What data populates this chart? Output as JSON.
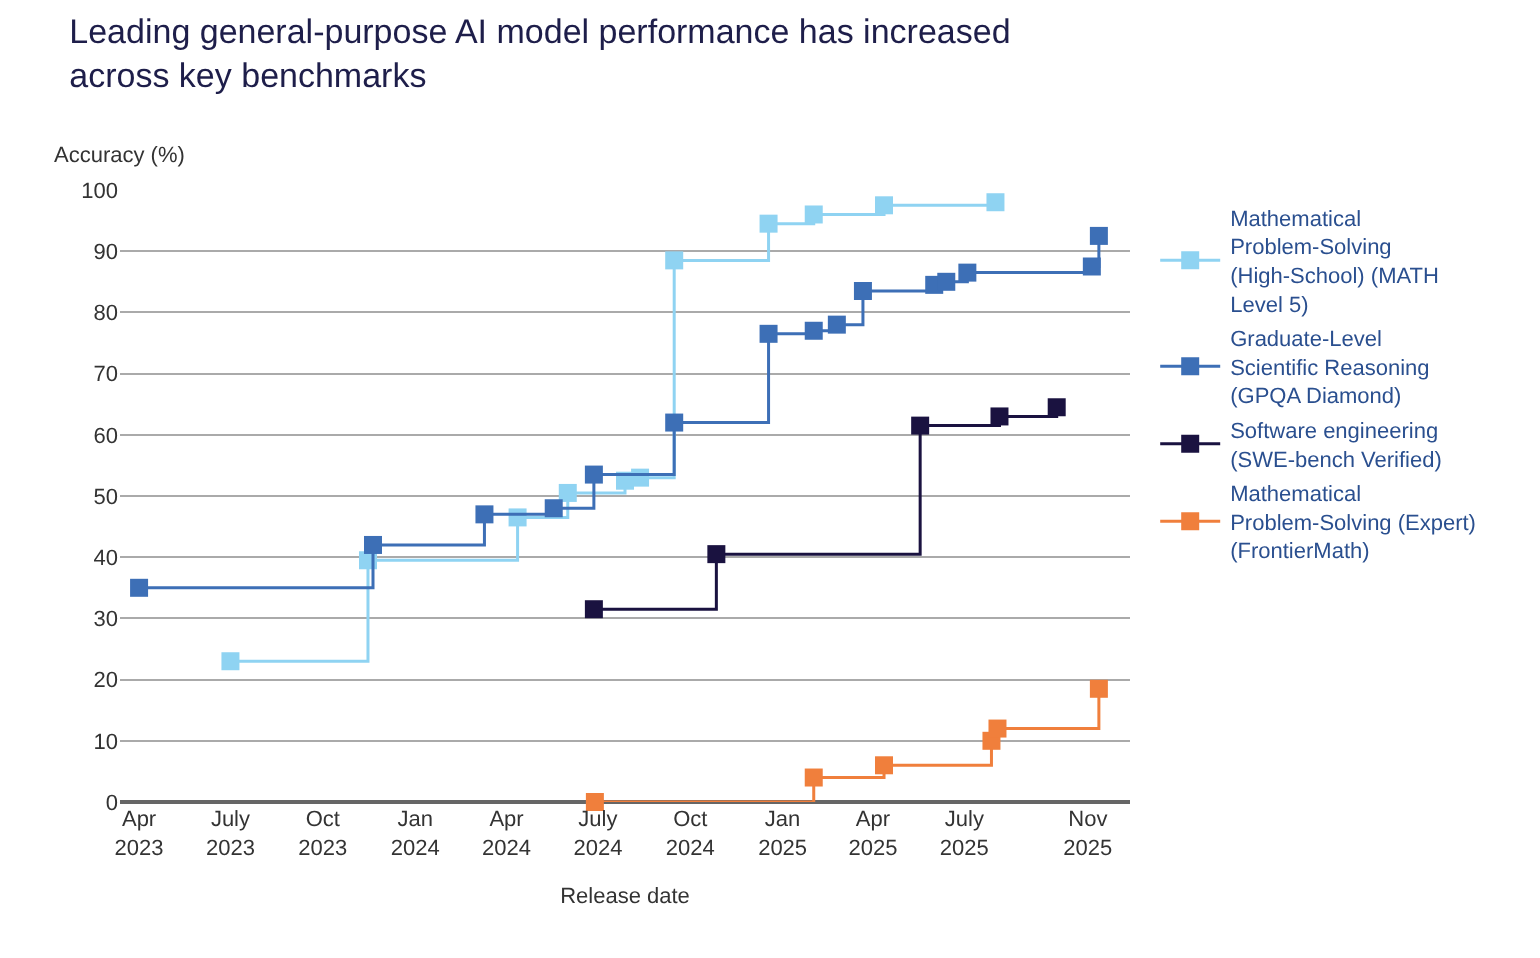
{
  "chart_data": {
    "type": "step",
    "title": "Leading general-purpose AI model performance has increased across key benchmarks",
    "xlabel": "Release date",
    "ylabel": "Accuracy (%)",
    "series": [
      {
        "name": "Mathematical Problem-Solving (High-School) (MATH Level 5)",
        "color": "#8fd3f2",
        "x": [
          "2023-07-01",
          "2023-11-15",
          "2024-04-12",
          "2024-06-01",
          "2024-07-28",
          "2024-08-12",
          "2024-09-15",
          "2024-12-18",
          "2025-02-01",
          "2025-04-12",
          "2025-08-01"
        ],
        "values": [
          23,
          39.5,
          46.5,
          50.5,
          52.5,
          53,
          88.5,
          94.5,
          96,
          97.5,
          98
        ]
      },
      {
        "name": "Graduate-Level Scientific Reasoning (GPQA Diamond)",
        "color": "#3d6fb6",
        "x": [
          "2023-04-01",
          "2023-11-20",
          "2024-03-10",
          "2024-05-18",
          "2024-06-27",
          "2024-09-15",
          "2024-12-18",
          "2025-02-01",
          "2025-02-24",
          "2025-03-22",
          "2025-06-01",
          "2025-06-13",
          "2025-07-04",
          "2025-11-05",
          "2025-11-12"
        ],
        "values": [
          35,
          42,
          47,
          48,
          53.5,
          62,
          76.5,
          77,
          78,
          83.5,
          84.5,
          85,
          86.5,
          87.5,
          92.5
        ]
      },
      {
        "name": "Software engineering (SWE-bench Verified)",
        "color": "#1a1240",
        "x": [
          "2024-06-27",
          "2024-10-27",
          "2025-05-18",
          "2025-08-05",
          "2025-10-01"
        ],
        "values": [
          31.5,
          40.5,
          61.5,
          63,
          64.5
        ]
      },
      {
        "name": "Mathematical Problem-Solving (Expert) (FrontierMath)",
        "color": "#f07f3c",
        "x": [
          "2024-06-28",
          "2025-02-01",
          "2025-04-12",
          "2025-07-28",
          "2025-08-03",
          "2025-11-12"
        ],
        "values": [
          0,
          4,
          6,
          10,
          12,
          18.5
        ]
      }
    ],
    "xlim": [
      "2023-03-13",
      "2025-12-13"
    ],
    "xticks": [
      {
        "value": "2023-04-01",
        "label": "Apr 2023"
      },
      {
        "value": "2023-07-01",
        "label": "July 2023"
      },
      {
        "value": "2023-10-01",
        "label": "Oct 2023"
      },
      {
        "value": "2024-01-01",
        "label": "Jan 2024"
      },
      {
        "value": "2024-04-01",
        "label": "Apr 2024"
      },
      {
        "value": "2024-07-01",
        "label": "July 2024"
      },
      {
        "value": "2024-10-01",
        "label": "Oct 2024"
      },
      {
        "value": "2025-01-01",
        "label": "Jan 2025"
      },
      {
        "value": "2025-04-01",
        "label": "Apr 2025"
      },
      {
        "value": "2025-07-01",
        "label": "July 2025"
      },
      {
        "value": "2025-11-01",
        "label": "Nov 2025"
      }
    ],
    "ylim": [
      0,
      100
    ],
    "yticks": [
      0,
      10,
      20,
      30,
      40,
      50,
      60,
      70,
      80,
      90,
      100
    ],
    "grid": "y",
    "legend": "right",
    "marker": "square",
    "line_style": "solid"
  }
}
